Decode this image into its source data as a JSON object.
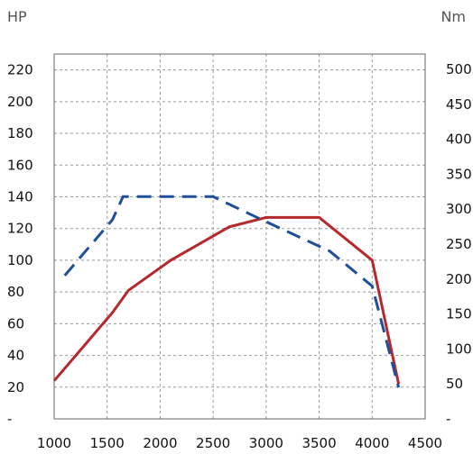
{
  "chart_data": {
    "type": "line",
    "left_axis_label": "HP",
    "right_axis_label": "Nm",
    "x_ticks": [
      "1000",
      "1500",
      "2000",
      "2500",
      "3000",
      "3500",
      "4000",
      "4500"
    ],
    "left_ticks": [
      "-",
      "20",
      "40",
      "60",
      "80",
      "100",
      "120",
      "140",
      "160",
      "180",
      "200",
      "220"
    ],
    "right_ticks": [
      "-",
      "50",
      "100",
      "150",
      "200",
      "250",
      "300",
      "350",
      "400",
      "450",
      "500"
    ],
    "xlim": [
      1000,
      4500
    ],
    "ylim_left": [
      0,
      230
    ],
    "ylim_right": [
      0,
      522
    ],
    "grid": true,
    "colors": {
      "power": "#b5282b",
      "torque": "#1f4e9a",
      "grid": "#999999"
    },
    "series": [
      {
        "axis": "left",
        "style": "solid",
        "color": "#b5282b",
        "x": [
          1000,
          1550,
          1700,
          2100,
          2650,
          3000,
          3500,
          4000,
          4250
        ],
        "y": [
          24,
          67,
          81,
          100,
          121,
          127,
          127,
          100,
          22
        ]
      },
      {
        "axis": "right",
        "style": "dashed",
        "color": "#1f4e9a",
        "x": [
          1100,
          1550,
          1650,
          2500,
          3000,
          3600,
          4000,
          4250
        ],
        "y": [
          205,
          285,
          318,
          318,
          282,
          240,
          190,
          45
        ]
      }
    ]
  }
}
